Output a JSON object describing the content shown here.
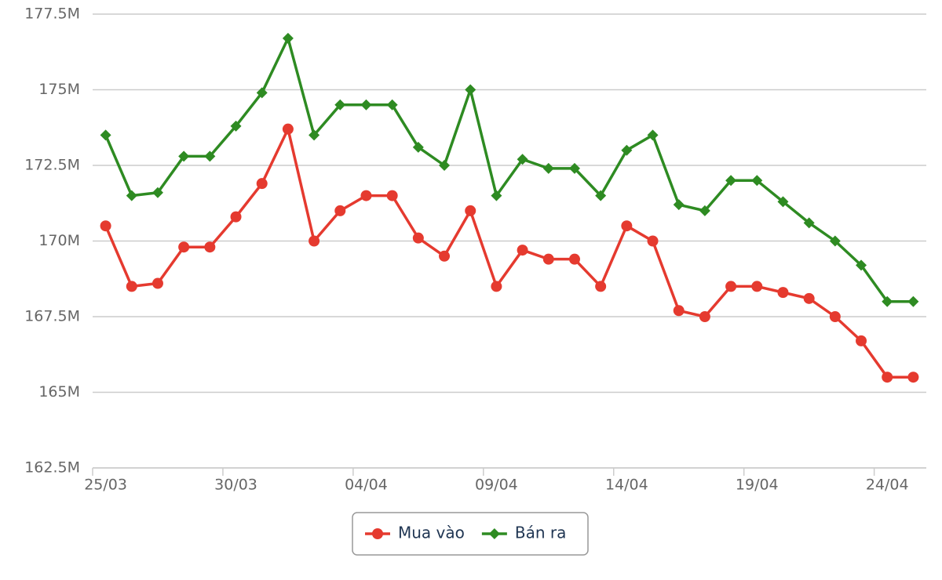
{
  "chart_data": {
    "type": "line",
    "categories": [
      "25/03",
      null,
      null,
      null,
      null,
      "30/03",
      null,
      null,
      null,
      null,
      "04/04",
      null,
      null,
      null,
      null,
      "09/04",
      null,
      null,
      null,
      null,
      "14/04",
      null,
      null,
      null,
      null,
      "19/04",
      null,
      null,
      null,
      null,
      "24/04",
      null
    ],
    "series": [
      {
        "name": "Mua vào",
        "color": "#e53a2f",
        "marker": "circle",
        "values": [
          170500000,
          168500000,
          168600000,
          169800000,
          169800000,
          170800000,
          171900000,
          173700000,
          170000000,
          171000000,
          171500000,
          171500000,
          170100000,
          169500000,
          171000000,
          168500000,
          169700000,
          169400000,
          169400000,
          168500000,
          170500000,
          170000000,
          167700000,
          167500000,
          168500000,
          168500000,
          168300000,
          168100000,
          167500000,
          166700000,
          165500000,
          165500000
        ]
      },
      {
        "name": "Bán ra",
        "color": "#2e8b22",
        "marker": "diamond",
        "values": [
          173500000,
          171500000,
          171600000,
          172800000,
          172800000,
          173800000,
          174900000,
          176700000,
          173500000,
          174500000,
          174500000,
          174500000,
          173100000,
          172500000,
          175000000,
          171500000,
          172700000,
          172400000,
          172400000,
          171500000,
          173000000,
          173500000,
          171200000,
          171000000,
          172000000,
          172000000,
          171300000,
          170600000,
          170000000,
          169200000,
          168000000,
          168000000
        ]
      }
    ],
    "ylim": [
      162500000,
      177500000
    ],
    "yticks": [
      {
        "value": 162500000,
        "label": "162.5M"
      },
      {
        "value": 165000000,
        "label": "165M"
      },
      {
        "value": 167500000,
        "label": "167.5M"
      },
      {
        "value": 170000000,
        "label": "170M"
      },
      {
        "value": 172500000,
        "label": "172.5M"
      },
      {
        "value": 175000000,
        "label": "175M"
      },
      {
        "value": 177500000,
        "label": "177.5M"
      }
    ],
    "grid": true,
    "legend": "bottom"
  }
}
